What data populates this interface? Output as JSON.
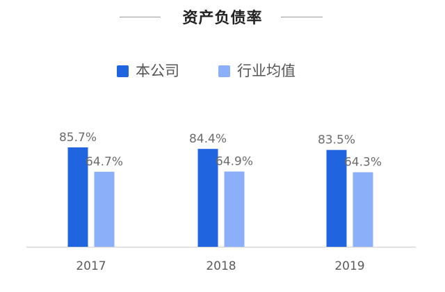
{
  "colors": {
    "company": "#2164e0",
    "industry": "#8bb0f9",
    "axis": "#d8d8d8"
  },
  "chart_data": {
    "type": "bar",
    "title": "资产负债率",
    "categories": [
      "2017",
      "2018",
      "2019"
    ],
    "series": [
      {
        "name": "本公司",
        "values": [
          85.7,
          84.4,
          83.5
        ],
        "labels": [
          "85.7%",
          "84.4%",
          "83.5%"
        ]
      },
      {
        "name": "行业均值",
        "values": [
          64.7,
          64.9,
          64.3
        ],
        "labels": [
          "64.7%",
          "64.9%",
          "64.3%"
        ]
      }
    ],
    "ylim": [
      0,
      100
    ],
    "grid": false,
    "legend_position": "top"
  }
}
